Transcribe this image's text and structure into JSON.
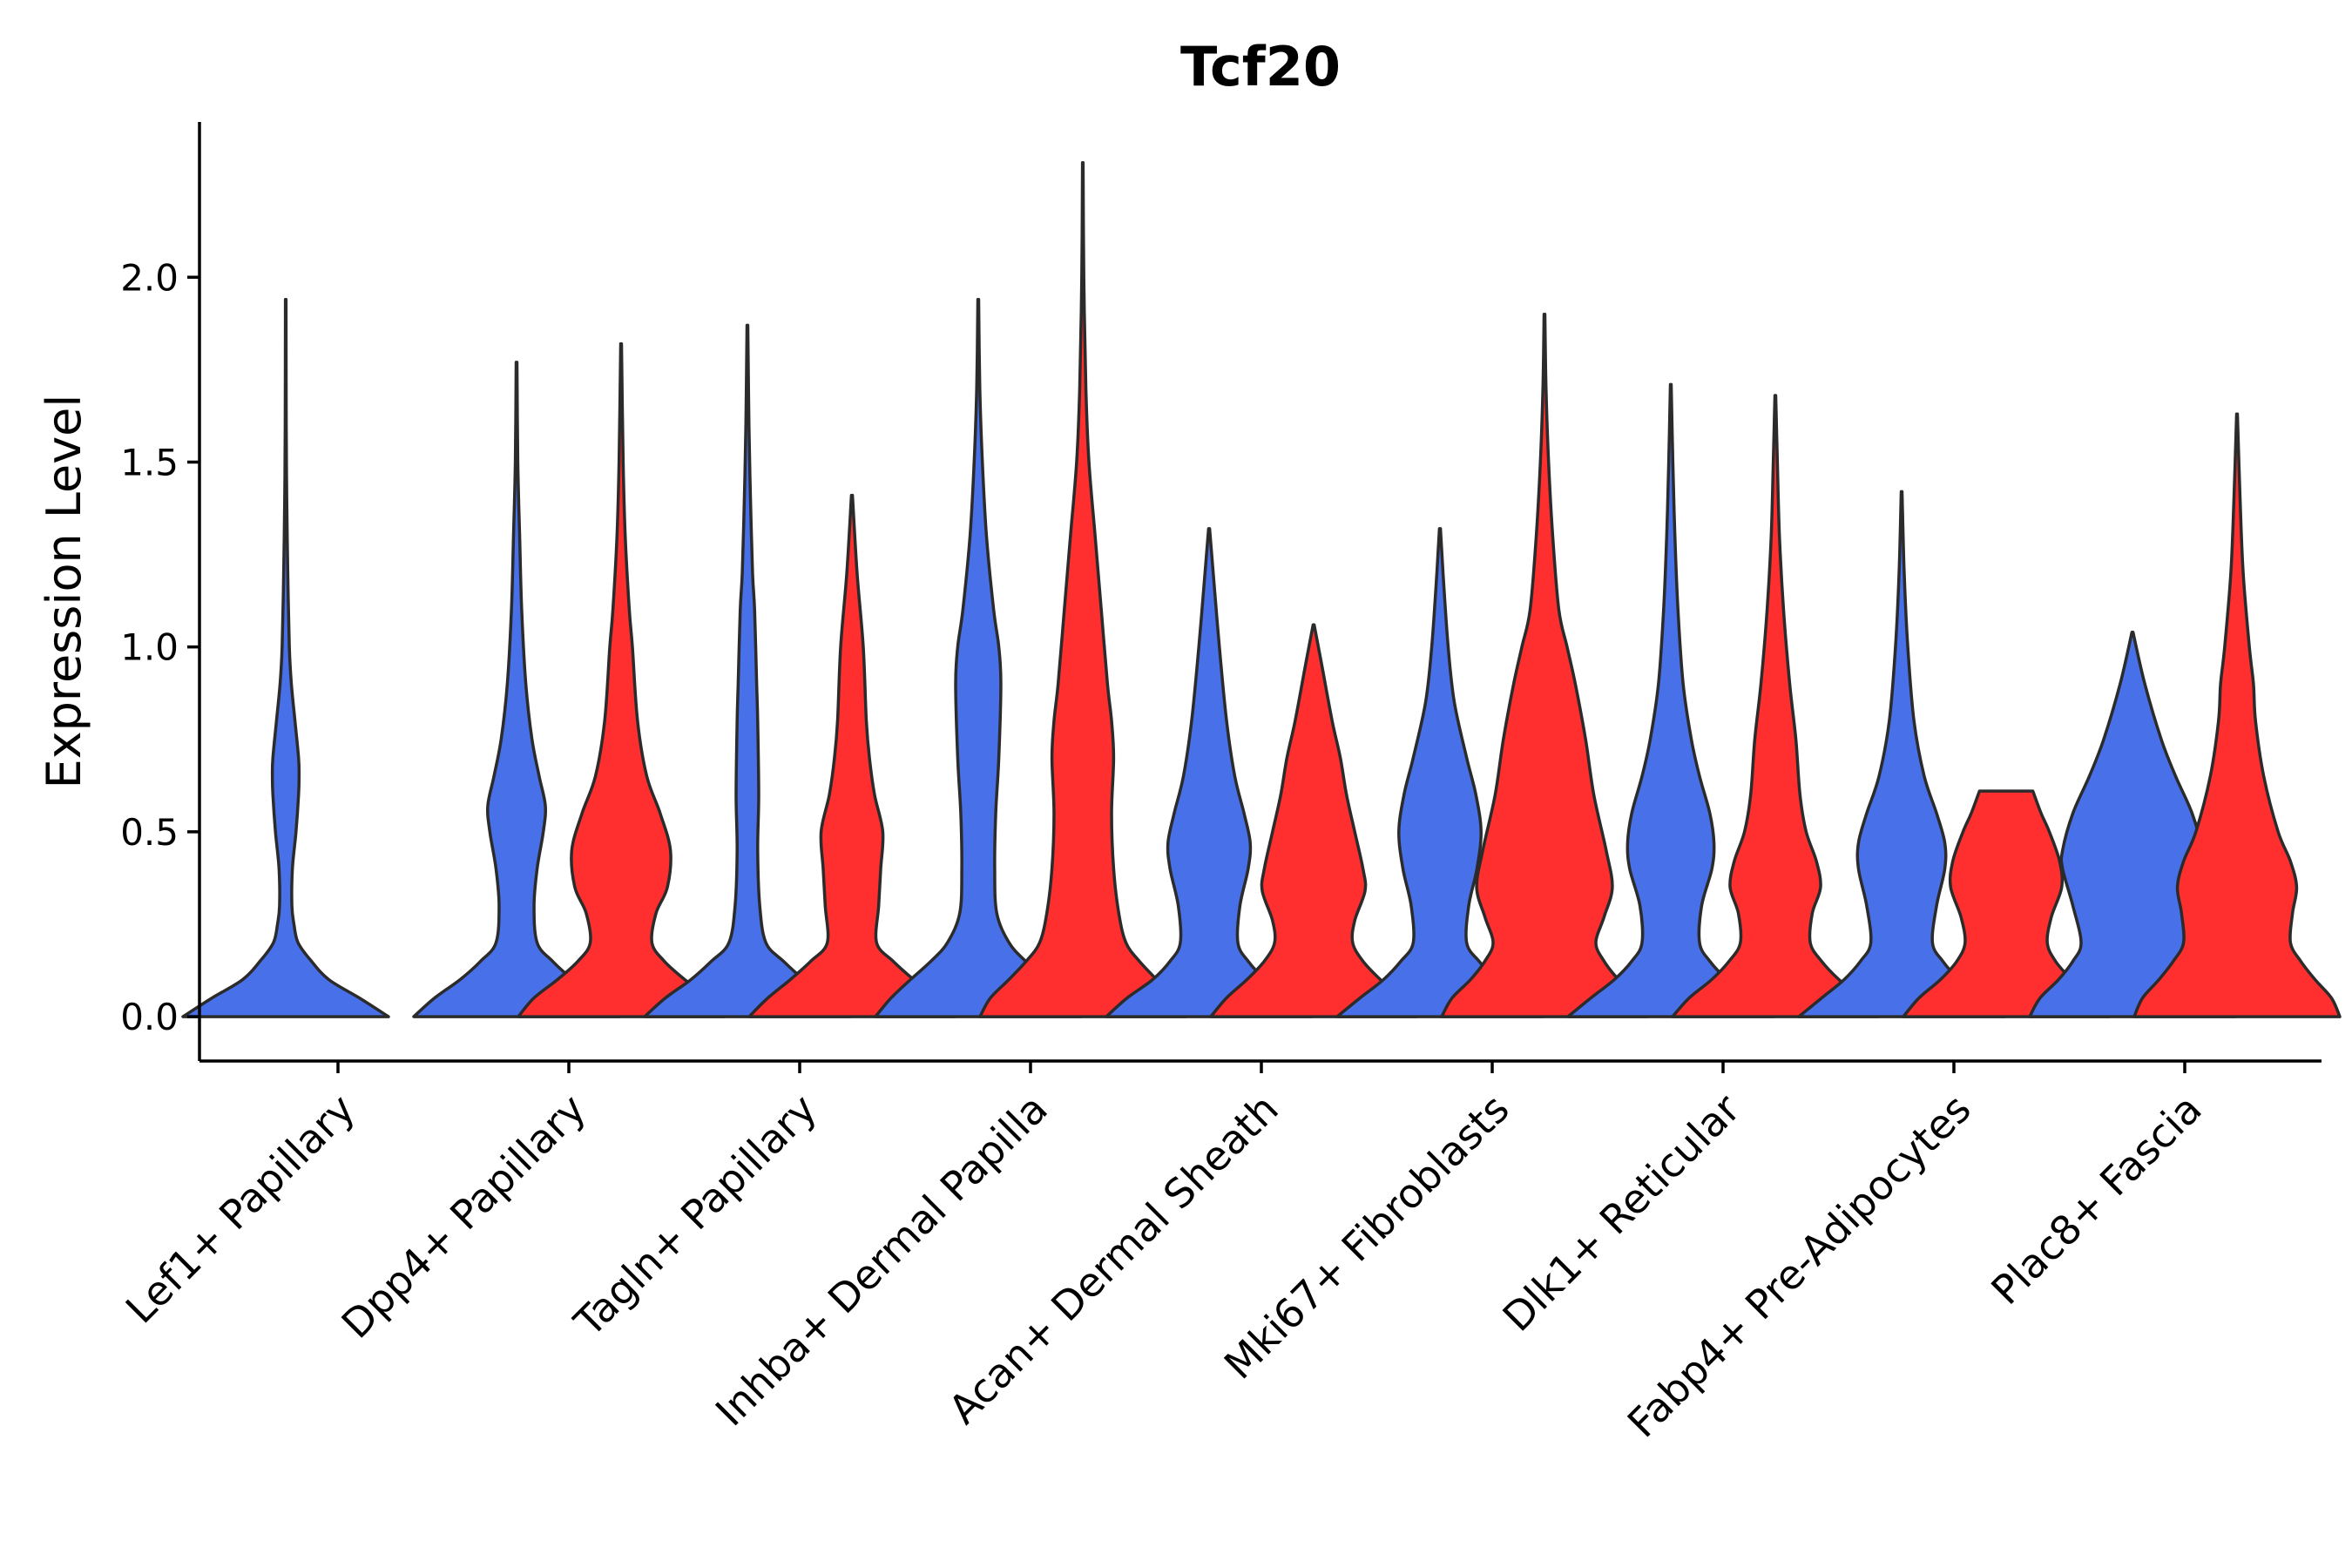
{
  "chart_data": {
    "type": "violin",
    "title": "Tcf20",
    "xlabel": "",
    "ylabel": "Expression Level",
    "ylim": [
      -0.12,
      2.42
    ],
    "yticks": [
      {
        "value": 0.0,
        "label": "0.0"
      },
      {
        "value": 0.5,
        "label": "0.5"
      },
      {
        "value": 1.0,
        "label": "1.0"
      },
      {
        "value": 1.5,
        "label": "1.5"
      },
      {
        "value": 2.0,
        "label": "2.0"
      }
    ],
    "colors": {
      "blue": "#4870E8",
      "red": "#FF2F2F",
      "outline": "#2b2b2b"
    },
    "categories": [
      "Lef1+ Papillary",
      "Dpp4+ Papillary",
      "Tagln+ Papillary",
      "Inhba+ Dermal Papilla",
      "Acan+ Dermal Sheath",
      "Mki67+ Fibroblasts",
      "Dlk1+ Reticular",
      "Fabp4+ Pre-Adipocytes",
      "Plac8+ Fascia"
    ],
    "violins": [
      {
        "category": "Lef1+ Papillary",
        "group": "blue",
        "side": "left",
        "max": 1.94,
        "profile": [
          [
            0,
            1.0
          ],
          [
            0.05,
            0.72
          ],
          [
            0.1,
            0.42
          ],
          [
            0.15,
            0.25
          ],
          [
            0.2,
            0.12
          ],
          [
            0.25,
            0.08
          ],
          [
            0.3,
            0.06
          ],
          [
            0.4,
            0.065
          ],
          [
            0.5,
            0.1
          ],
          [
            0.6,
            0.125
          ],
          [
            0.65,
            0.13
          ],
          [
            0.7,
            0.125
          ],
          [
            0.8,
            0.09
          ],
          [
            0.9,
            0.055
          ],
          [
            1.0,
            0.035
          ],
          [
            1.2,
            0.02
          ],
          [
            1.4,
            0.01
          ],
          [
            1.6,
            0.005
          ],
          [
            1.94,
            0.003
          ]
        ]
      },
      {
        "category": "Dpp4+ Papillary",
        "group": "blue",
        "side": "left",
        "max": 1.77,
        "profile": [
          [
            0,
            1.0
          ],
          [
            0.05,
            0.8
          ],
          [
            0.1,
            0.55
          ],
          [
            0.15,
            0.35
          ],
          [
            0.2,
            0.2
          ],
          [
            0.3,
            0.17
          ],
          [
            0.4,
            0.2
          ],
          [
            0.5,
            0.26
          ],
          [
            0.57,
            0.28
          ],
          [
            0.65,
            0.22
          ],
          [
            0.75,
            0.15
          ],
          [
            0.9,
            0.09
          ],
          [
            1.1,
            0.05
          ],
          [
            1.3,
            0.03
          ],
          [
            1.5,
            0.012
          ],
          [
            1.77,
            0.004
          ]
        ]
      },
      {
        "category": "Dpp4+ Papillary",
        "group": "red",
        "side": "right",
        "max": 1.82,
        "profile": [
          [
            0,
            1.0
          ],
          [
            0.05,
            0.85
          ],
          [
            0.1,
            0.62
          ],
          [
            0.15,
            0.42
          ],
          [
            0.2,
            0.3
          ],
          [
            0.28,
            0.34
          ],
          [
            0.35,
            0.45
          ],
          [
            0.45,
            0.48
          ],
          [
            0.55,
            0.38
          ],
          [
            0.65,
            0.25
          ],
          [
            0.8,
            0.16
          ],
          [
            1.0,
            0.11
          ],
          [
            1.1,
            0.08
          ],
          [
            1.3,
            0.04
          ],
          [
            1.5,
            0.02
          ],
          [
            1.82,
            0.004
          ]
        ]
      },
      {
        "category": "Tagln+ Papillary",
        "group": "blue",
        "side": "left",
        "max": 1.87,
        "profile": [
          [
            0,
            1.0
          ],
          [
            0.05,
            0.8
          ],
          [
            0.1,
            0.55
          ],
          [
            0.15,
            0.35
          ],
          [
            0.2,
            0.18
          ],
          [
            0.3,
            0.12
          ],
          [
            0.45,
            0.1
          ],
          [
            0.6,
            0.11
          ],
          [
            0.8,
            0.1
          ],
          [
            0.9,
            0.09
          ],
          [
            1.1,
            0.07
          ],
          [
            1.2,
            0.05
          ],
          [
            1.4,
            0.03
          ],
          [
            1.6,
            0.015
          ],
          [
            1.87,
            0.004
          ]
        ]
      },
      {
        "category": "Tagln+ Papillary",
        "group": "red",
        "side": "right",
        "max": 1.41,
        "profile": [
          [
            0,
            1.0
          ],
          [
            0.05,
            0.82
          ],
          [
            0.1,
            0.6
          ],
          [
            0.15,
            0.4
          ],
          [
            0.2,
            0.24
          ],
          [
            0.3,
            0.26
          ],
          [
            0.4,
            0.28
          ],
          [
            0.5,
            0.3
          ],
          [
            0.6,
            0.22
          ],
          [
            0.7,
            0.17
          ],
          [
            0.8,
            0.14
          ],
          [
            1.0,
            0.11
          ],
          [
            1.2,
            0.05
          ],
          [
            1.41,
            0.005
          ]
        ]
      },
      {
        "category": "Inhba+ Dermal Papilla",
        "group": "blue",
        "side": "left",
        "max": 1.94,
        "profile": [
          [
            0,
            1.0
          ],
          [
            0.05,
            0.85
          ],
          [
            0.1,
            0.66
          ],
          [
            0.15,
            0.46
          ],
          [
            0.2,
            0.3
          ],
          [
            0.28,
            0.18
          ],
          [
            0.4,
            0.16
          ],
          [
            0.55,
            0.17
          ],
          [
            0.7,
            0.2
          ],
          [
            0.9,
            0.22
          ],
          [
            1.0,
            0.2
          ],
          [
            1.1,
            0.15
          ],
          [
            1.3,
            0.08
          ],
          [
            1.5,
            0.04
          ],
          [
            1.7,
            0.015
          ],
          [
            1.94,
            0.004
          ]
        ]
      },
      {
        "category": "Inhba+ Dermal Papilla",
        "group": "red",
        "side": "right",
        "max": 2.31,
        "profile": [
          [
            0,
            1.0
          ],
          [
            0.05,
            0.9
          ],
          [
            0.1,
            0.72
          ],
          [
            0.15,
            0.55
          ],
          [
            0.2,
            0.42
          ],
          [
            0.28,
            0.35
          ],
          [
            0.4,
            0.3
          ],
          [
            0.55,
            0.28
          ],
          [
            0.7,
            0.3
          ],
          [
            0.8,
            0.28
          ],
          [
            0.9,
            0.24
          ],
          [
            1.1,
            0.18
          ],
          [
            1.3,
            0.12
          ],
          [
            1.5,
            0.06
          ],
          [
            1.7,
            0.03
          ],
          [
            2.0,
            0.01
          ],
          [
            2.31,
            0.003
          ]
        ]
      },
      {
        "category": "Acan+ Dermal Sheath",
        "group": "blue",
        "side": "left",
        "max": 1.32,
        "profile": [
          [
            0,
            1.0
          ],
          [
            0.05,
            0.8
          ],
          [
            0.1,
            0.55
          ],
          [
            0.15,
            0.38
          ],
          [
            0.2,
            0.28
          ],
          [
            0.3,
            0.3
          ],
          [
            0.4,
            0.38
          ],
          [
            0.47,
            0.4
          ],
          [
            0.55,
            0.34
          ],
          [
            0.65,
            0.25
          ],
          [
            0.8,
            0.17
          ],
          [
            1.0,
            0.1
          ],
          [
            1.2,
            0.04
          ],
          [
            1.32,
            0.005
          ]
        ]
      },
      {
        "category": "Acan+ Dermal Sheath",
        "group": "red",
        "side": "right",
        "max": 1.06,
        "profile": [
          [
            0,
            1.0
          ],
          [
            0.05,
            0.85
          ],
          [
            0.1,
            0.65
          ],
          [
            0.15,
            0.48
          ],
          [
            0.2,
            0.38
          ],
          [
            0.26,
            0.4
          ],
          [
            0.34,
            0.5
          ],
          [
            0.4,
            0.48
          ],
          [
            0.5,
            0.4
          ],
          [
            0.6,
            0.32
          ],
          [
            0.7,
            0.26
          ],
          [
            0.8,
            0.18
          ],
          [
            0.95,
            0.08
          ],
          [
            1.06,
            0.005
          ]
        ]
      },
      {
        "category": "Mki67+ Fibroblasts",
        "group": "blue",
        "side": "left",
        "max": 1.32,
        "profile": [
          [
            0,
            1.0
          ],
          [
            0.05,
            0.78
          ],
          [
            0.1,
            0.55
          ],
          [
            0.15,
            0.38
          ],
          [
            0.2,
            0.26
          ],
          [
            0.3,
            0.28
          ],
          [
            0.4,
            0.36
          ],
          [
            0.5,
            0.4
          ],
          [
            0.6,
            0.35
          ],
          [
            0.7,
            0.26
          ],
          [
            0.85,
            0.14
          ],
          [
            1.0,
            0.08
          ],
          [
            1.2,
            0.03
          ],
          [
            1.32,
            0.005
          ]
        ]
      },
      {
        "category": "Mki67+ Fibroblasts",
        "group": "red",
        "side": "right",
        "max": 1.9,
        "profile": [
          [
            0,
            1.0
          ],
          [
            0.05,
            0.9
          ],
          [
            0.1,
            0.72
          ],
          [
            0.15,
            0.58
          ],
          [
            0.2,
            0.5
          ],
          [
            0.27,
            0.58
          ],
          [
            0.35,
            0.66
          ],
          [
            0.45,
            0.6
          ],
          [
            0.6,
            0.48
          ],
          [
            0.75,
            0.4
          ],
          [
            0.9,
            0.3
          ],
          [
            1.0,
            0.22
          ],
          [
            1.1,
            0.14
          ],
          [
            1.3,
            0.08
          ],
          [
            1.5,
            0.04
          ],
          [
            1.7,
            0.015
          ],
          [
            1.9,
            0.004
          ]
        ]
      },
      {
        "category": "Dlk1+ Reticular",
        "group": "blue",
        "side": "left",
        "max": 1.71,
        "profile": [
          [
            0,
            1.0
          ],
          [
            0.05,
            0.78
          ],
          [
            0.1,
            0.55
          ],
          [
            0.15,
            0.38
          ],
          [
            0.2,
            0.28
          ],
          [
            0.3,
            0.3
          ],
          [
            0.4,
            0.4
          ],
          [
            0.47,
            0.42
          ],
          [
            0.55,
            0.38
          ],
          [
            0.65,
            0.28
          ],
          [
            0.75,
            0.2
          ],
          [
            0.9,
            0.12
          ],
          [
            1.1,
            0.07
          ],
          [
            1.3,
            0.04
          ],
          [
            1.5,
            0.02
          ],
          [
            1.71,
            0.004
          ]
        ]
      },
      {
        "category": "Dlk1+ Reticular",
        "group": "red",
        "side": "right",
        "max": 1.68,
        "profile": [
          [
            0,
            1.0
          ],
          [
            0.05,
            0.84
          ],
          [
            0.1,
            0.62
          ],
          [
            0.15,
            0.45
          ],
          [
            0.2,
            0.34
          ],
          [
            0.28,
            0.36
          ],
          [
            0.35,
            0.44
          ],
          [
            0.42,
            0.4
          ],
          [
            0.5,
            0.3
          ],
          [
            0.6,
            0.24
          ],
          [
            0.75,
            0.2
          ],
          [
            0.9,
            0.14
          ],
          [
            1.1,
            0.08
          ],
          [
            1.3,
            0.04
          ],
          [
            1.5,
            0.02
          ],
          [
            1.68,
            0.004
          ]
        ]
      },
      {
        "category": "Fabp4+ Pre-Adipocytes",
        "group": "blue",
        "side": "left",
        "max": 1.42,
        "profile": [
          [
            0,
            1.0
          ],
          [
            0.05,
            0.78
          ],
          [
            0.1,
            0.56
          ],
          [
            0.15,
            0.4
          ],
          [
            0.2,
            0.3
          ],
          [
            0.3,
            0.34
          ],
          [
            0.4,
            0.42
          ],
          [
            0.47,
            0.42
          ],
          [
            0.55,
            0.34
          ],
          [
            0.65,
            0.22
          ],
          [
            0.8,
            0.12
          ],
          [
            1.0,
            0.06
          ],
          [
            1.2,
            0.025
          ],
          [
            1.42,
            0.004
          ]
        ]
      },
      {
        "category": "Fabp4+ Pre-Adipocytes",
        "group": "red",
        "side": "right",
        "max": 0.61,
        "profile": [
          [
            0,
            1.0
          ],
          [
            0.05,
            0.85
          ],
          [
            0.1,
            0.64
          ],
          [
            0.15,
            0.48
          ],
          [
            0.2,
            0.4
          ],
          [
            0.27,
            0.44
          ],
          [
            0.35,
            0.54
          ],
          [
            0.42,
            0.52
          ],
          [
            0.5,
            0.42
          ],
          [
            0.55,
            0.34
          ],
          [
            0.61,
            0.26
          ]
        ]
      },
      {
        "category": "Plac8+ Fascia",
        "group": "blue",
        "side": "left",
        "max": 1.04,
        "profile": [
          [
            0,
            1.0
          ],
          [
            0.05,
            0.9
          ],
          [
            0.1,
            0.72
          ],
          [
            0.15,
            0.58
          ],
          [
            0.2,
            0.5
          ],
          [
            0.3,
            0.58
          ],
          [
            0.4,
            0.68
          ],
          [
            0.45,
            0.68
          ],
          [
            0.55,
            0.58
          ],
          [
            0.65,
            0.42
          ],
          [
            0.75,
            0.28
          ],
          [
            0.9,
            0.12
          ],
          [
            1.04,
            0.005
          ]
        ]
      },
      {
        "category": "Plac8+ Fascia",
        "group": "red",
        "side": "right",
        "max": 1.63,
        "profile": [
          [
            0,
            1.0
          ],
          [
            0.05,
            0.92
          ],
          [
            0.1,
            0.76
          ],
          [
            0.15,
            0.62
          ],
          [
            0.2,
            0.52
          ],
          [
            0.28,
            0.54
          ],
          [
            0.35,
            0.58
          ],
          [
            0.42,
            0.52
          ],
          [
            0.5,
            0.4
          ],
          [
            0.65,
            0.26
          ],
          [
            0.8,
            0.18
          ],
          [
            0.9,
            0.16
          ],
          [
            1.0,
            0.12
          ],
          [
            1.2,
            0.06
          ],
          [
            1.4,
            0.03
          ],
          [
            1.63,
            0.004
          ]
        ]
      }
    ]
  }
}
